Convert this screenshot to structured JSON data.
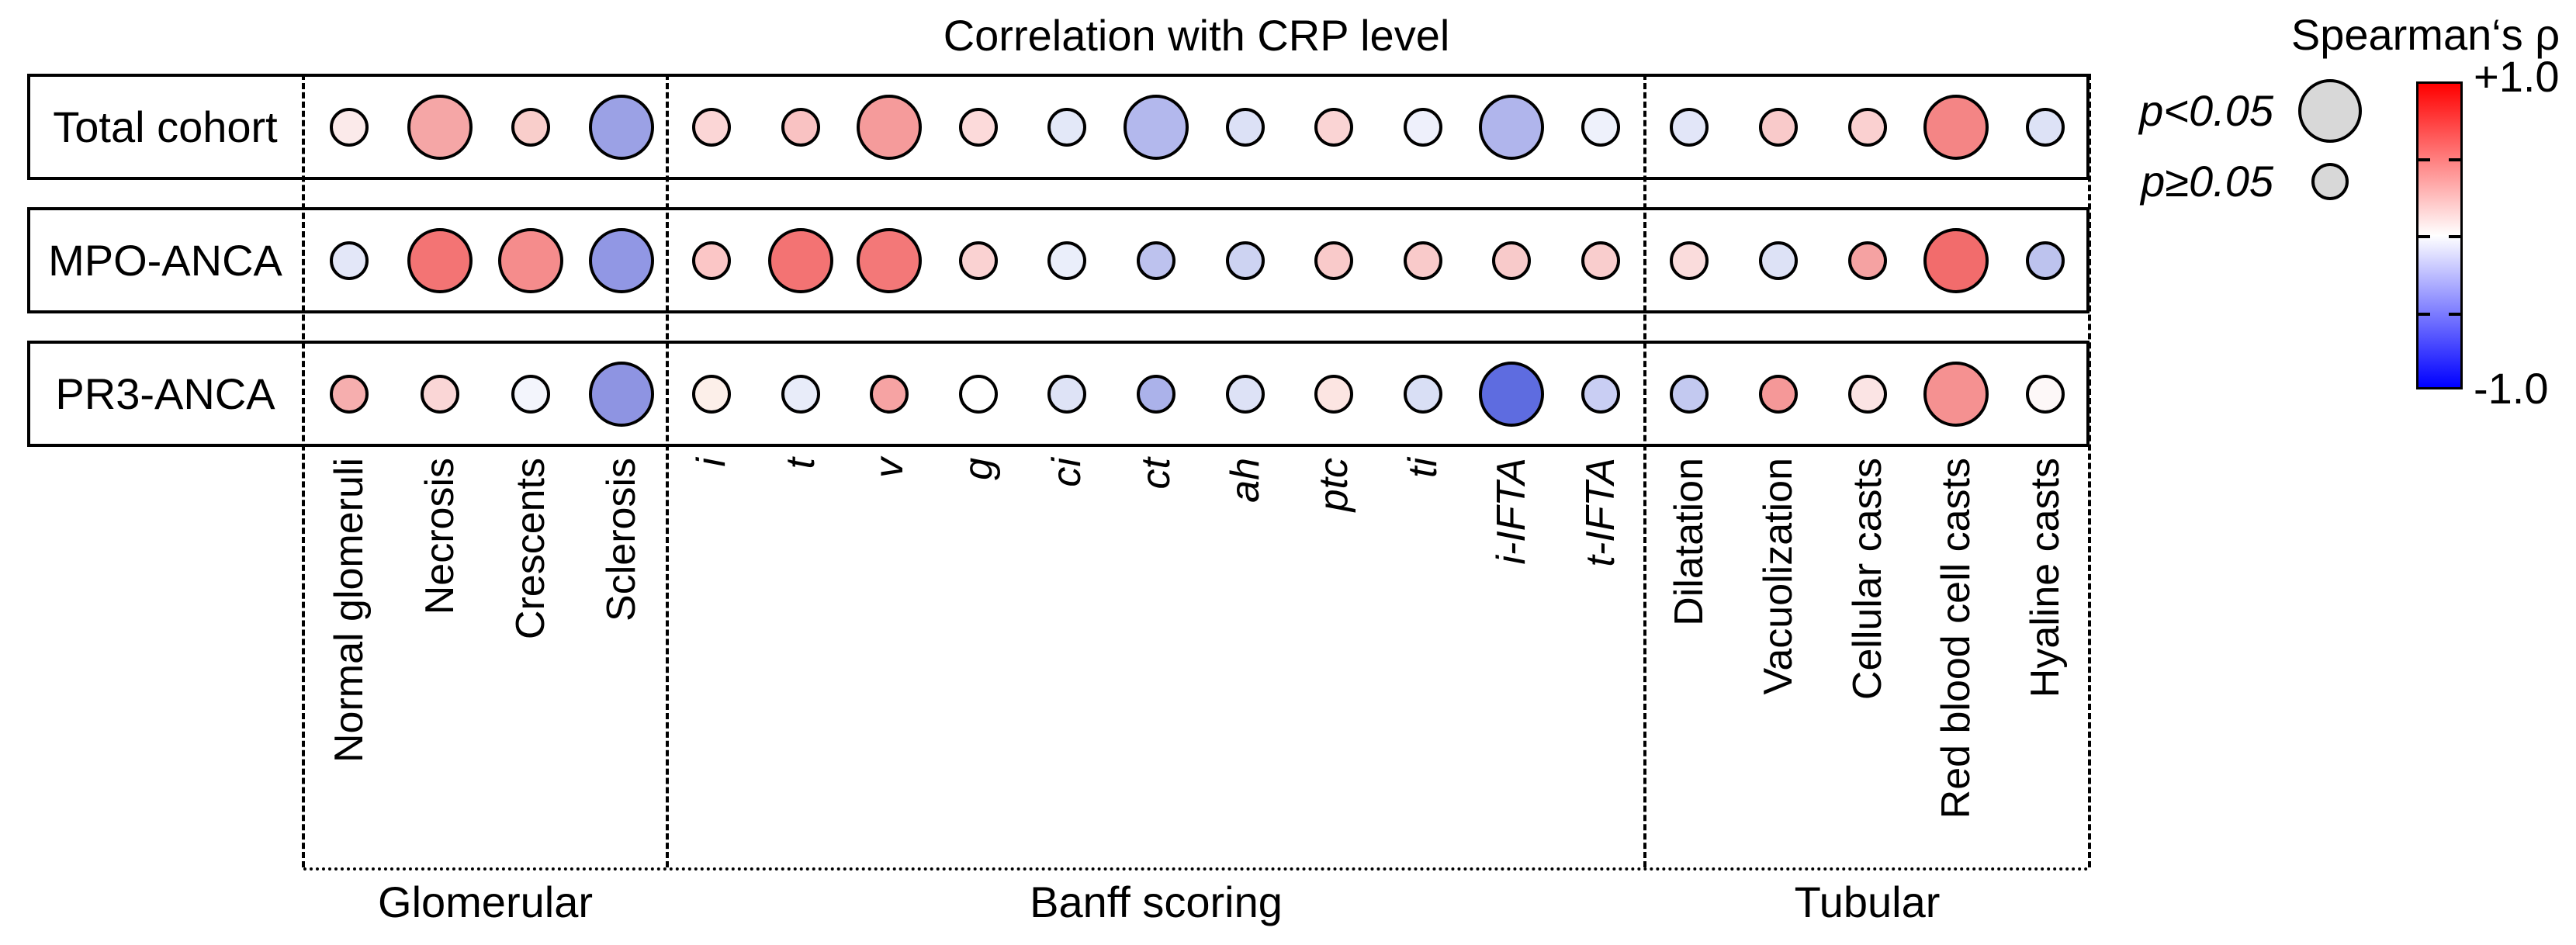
{
  "title": "Correlation with CRP level",
  "legend": {
    "title": "Spearman‘s ρ",
    "size_key": [
      {
        "label": "p<0.05",
        "size": "large"
      },
      {
        "label": "p≥0.05",
        "size": "small"
      }
    ],
    "size_circle_fill": "#d8d8d8",
    "colorbar": {
      "max_label": "+1.0",
      "min_label": "-1.0",
      "max_color": "#ff0000",
      "mid_color": "#ffffff",
      "min_color": "#0000ff"
    }
  },
  "chart_data": {
    "type": "scatter",
    "subtype": "correlation-bubble-matrix",
    "title": "Correlation with CRP level",
    "rows": [
      "Total cohort",
      "MPO-ANCA",
      "PR3-ANCA"
    ],
    "column_groups": [
      {
        "label": "Glomerular",
        "italic": false,
        "columns": [
          "Normal glomeruli",
          "Necrosis",
          "Crescents",
          "Sclerosis"
        ]
      },
      {
        "label": "Banff scoring",
        "italic": true,
        "columns": [
          "i",
          "t",
          "v",
          "g",
          "ci",
          "ct",
          "ah",
          "ptc",
          "ti",
          "i-IFTA",
          "t-IFTA"
        ]
      },
      {
        "label": "Tubular",
        "italic": false,
        "columns": [
          "Dilatation",
          "Vacuolization",
          "Cellular casts",
          "Red blood cell casts",
          "Hyaline casts"
        ]
      }
    ],
    "size_encoding": {
      "large": "p<0.05",
      "small": "p≥0.05"
    },
    "color_encoding": {
      "variable": "Spearman's rho",
      "min": -1.0,
      "max": 1.0,
      "min_color": "#0000ff",
      "mid_color": "#ffffff",
      "max_color": "#ff0000"
    },
    "series": [
      {
        "name": "Total cohort",
        "points": [
          {
            "column": "Normal glomeruli",
            "rho_est": 0.08,
            "significant": false,
            "fill": "#fbeaea"
          },
          {
            "column": "Necrosis",
            "rho_est": 0.35,
            "significant": true,
            "fill": "#f5a6a6"
          },
          {
            "column": "Crescents",
            "rho_est": 0.2,
            "significant": false,
            "fill": "#f9cecb"
          },
          {
            "column": "Sclerosis",
            "rho_est": -0.39,
            "significant": true,
            "fill": "#9ba1e5"
          },
          {
            "column": "i",
            "rho_est": 0.16,
            "significant": false,
            "fill": "#fbd6d6"
          },
          {
            "column": "t",
            "rho_est": 0.24,
            "significant": false,
            "fill": "#f9c2c2"
          },
          {
            "column": "v",
            "rho_est": 0.39,
            "significant": true,
            "fill": "#f59b9b"
          },
          {
            "column": "g",
            "rho_est": 0.15,
            "significant": false,
            "fill": "#fcdada"
          },
          {
            "column": "ci",
            "rho_est": -0.11,
            "significant": false,
            "fill": "#e3e8f8"
          },
          {
            "column": "ct",
            "rho_est": -0.3,
            "significant": true,
            "fill": "#b3b8ed"
          },
          {
            "column": "ah",
            "rho_est": -0.14,
            "significant": false,
            "fill": "#dce1f6"
          },
          {
            "column": "ptc",
            "rho_est": 0.17,
            "significant": false,
            "fill": "#fad4d4"
          },
          {
            "column": "ti",
            "rho_est": -0.07,
            "significant": false,
            "fill": "#eef0fb"
          },
          {
            "column": "i-IFTA",
            "rho_est": -0.31,
            "significant": true,
            "fill": "#b0b5ec"
          },
          {
            "column": "t-IFTA",
            "rho_est": -0.07,
            "significant": false,
            "fill": "#eef1fb"
          },
          {
            "column": "Dilatation",
            "rho_est": -0.11,
            "significant": false,
            "fill": "#e2e6f8"
          },
          {
            "column": "Vacuolization",
            "rho_est": 0.21,
            "significant": false,
            "fill": "#f9caca"
          },
          {
            "column": "Cellular casts",
            "rho_est": 0.18,
            "significant": false,
            "fill": "#fad0d0"
          },
          {
            "column": "Red blood cell casts",
            "rho_est": 0.48,
            "significant": true,
            "fill": "#f48585"
          },
          {
            "column": "Hyaline casts",
            "rho_est": -0.13,
            "significant": false,
            "fill": "#dde2f6"
          }
        ]
      },
      {
        "name": "MPO-ANCA",
        "points": [
          {
            "column": "Normal glomeruli",
            "rho_est": -0.11,
            "significant": false,
            "fill": "#e3e7f8"
          },
          {
            "column": "Necrosis",
            "rho_est": 0.55,
            "significant": true,
            "fill": "#f37474"
          },
          {
            "column": "Crescents",
            "rho_est": 0.45,
            "significant": true,
            "fill": "#f58c8c"
          },
          {
            "column": "Sclerosis",
            "rho_est": -0.43,
            "significant": true,
            "fill": "#9197e4"
          },
          {
            "column": "i",
            "rho_est": 0.22,
            "significant": false,
            "fill": "#fbc6c6"
          },
          {
            "column": "t",
            "rho_est": 0.55,
            "significant": true,
            "fill": "#f37373"
          },
          {
            "column": "v",
            "rho_est": 0.53,
            "significant": true,
            "fill": "#f37878"
          },
          {
            "column": "g",
            "rho_est": 0.18,
            "significant": false,
            "fill": "#fad2d2"
          },
          {
            "column": "ci",
            "rho_est": -0.08,
            "significant": false,
            "fill": "#eaeefa"
          },
          {
            "column": "ct",
            "rho_est": -0.26,
            "significant": false,
            "fill": "#bdc2ee"
          },
          {
            "column": "ah",
            "rho_est": -0.2,
            "significant": false,
            "fill": "#cdd3f2"
          },
          {
            "column": "ptc",
            "rho_est": 0.21,
            "significant": false,
            "fill": "#f9caca"
          },
          {
            "column": "ti",
            "rho_est": 0.21,
            "significant": false,
            "fill": "#f9caca"
          },
          {
            "column": "i-IFTA",
            "rho_est": 0.21,
            "significant": false,
            "fill": "#f8caca"
          },
          {
            "column": "t-IFTA",
            "rho_est": 0.2,
            "significant": false,
            "fill": "#f9cdcd"
          },
          {
            "column": "Dilatation",
            "rho_est": 0.14,
            "significant": false,
            "fill": "#fadcdc"
          },
          {
            "column": "Vacuolization",
            "rho_est": -0.13,
            "significant": false,
            "fill": "#dde2f6"
          },
          {
            "column": "Cellular casts",
            "rho_est": 0.36,
            "significant": false,
            "fill": "#f5a2a2"
          },
          {
            "column": "Red blood cell casts",
            "rho_est": 0.58,
            "significant": true,
            "fill": "#f26c6c"
          },
          {
            "column": "Hyaline casts",
            "rho_est": -0.26,
            "significant": false,
            "fill": "#bdc3ee"
          }
        ]
      },
      {
        "name": "PR3-ANCA",
        "points": [
          {
            "column": "Normal glomeruli",
            "rho_est": 0.32,
            "significant": false,
            "fill": "#f6aeae"
          },
          {
            "column": "Necrosis",
            "rho_est": 0.16,
            "significant": false,
            "fill": "#fad6d6"
          },
          {
            "column": "Crescents",
            "rho_est": -0.05,
            "significant": false,
            "fill": "#f3f5fc"
          },
          {
            "column": "Sclerosis",
            "rho_est": -0.44,
            "significant": true,
            "fill": "#8e94e2"
          },
          {
            "column": "i",
            "rho_est": 0.06,
            "significant": false,
            "fill": "#fcefe9"
          },
          {
            "column": "t",
            "rho_est": -0.09,
            "significant": false,
            "fill": "#e8ecf9"
          },
          {
            "column": "v",
            "rho_est": 0.36,
            "significant": false,
            "fill": "#f6a3a3"
          },
          {
            "column": "g",
            "rho_est": 0.0,
            "significant": false,
            "fill": "#ffffff"
          },
          {
            "column": "ci",
            "rho_est": -0.13,
            "significant": false,
            "fill": "#dee3f6"
          },
          {
            "column": "ct",
            "rho_est": -0.33,
            "significant": false,
            "fill": "#abb2ea"
          },
          {
            "column": "ah",
            "rho_est": -0.13,
            "significant": false,
            "fill": "#dde2f6"
          },
          {
            "column": "ptc",
            "rho_est": 0.1,
            "significant": false,
            "fill": "#fce5e2"
          },
          {
            "column": "ti",
            "rho_est": -0.15,
            "significant": false,
            "fill": "#d9dff5"
          },
          {
            "column": "i-IFTA",
            "rho_est": -0.63,
            "significant": true,
            "fill": "#5e6ce0"
          },
          {
            "column": "t-IFTA",
            "rho_est": -0.21,
            "significant": false,
            "fill": "#c9cef3"
          },
          {
            "column": "Dilatation",
            "rho_est": -0.24,
            "significant": false,
            "fill": "#c3c9f0"
          },
          {
            "column": "Vacuolization",
            "rho_est": 0.4,
            "significant": false,
            "fill": "#f59898"
          },
          {
            "column": "Cellular casts",
            "rho_est": 0.11,
            "significant": false,
            "fill": "#fbe4e4"
          },
          {
            "column": "Red blood cell casts",
            "rho_est": 0.43,
            "significant": true,
            "fill": "#f59191"
          },
          {
            "column": "Hyaline casts",
            "rho_est": 0.03,
            "significant": false,
            "fill": "#fdf8f8"
          }
        ]
      }
    ]
  }
}
